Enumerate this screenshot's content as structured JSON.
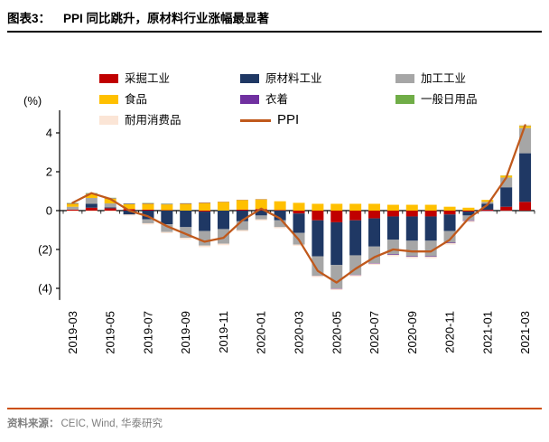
{
  "header": {
    "label": "图表3：",
    "title": "PPI 同比跳升，原材料行业涨幅最显著"
  },
  "footer": {
    "source_label": "资料来源：",
    "source_text": "CEIC, Wind, 华泰研究"
  },
  "colors": {
    "header_rule": "#000000",
    "footer_rule": "#cc4f06"
  },
  "chart_data": {
    "type": "bar",
    "subtype": "stacked-bar-with-line",
    "title": "PPI 同比跳升，原材料行业涨幅最显著",
    "ylabel": "(%)",
    "ylim": [
      -4.6,
      5
    ],
    "yticks": [
      4,
      2,
      0,
      -2,
      -4
    ],
    "ytick_labels": [
      "4",
      "2",
      "0",
      "(2)",
      "(4)"
    ],
    "grid": false,
    "legend_position": "top",
    "x": [
      "2019-03",
      "2019-04",
      "2019-05",
      "2019-06",
      "2019-07",
      "2019-08",
      "2019-09",
      "2019-10",
      "2019-11",
      "2019-12",
      "2020-01",
      "2020-02",
      "2020-03",
      "2020-04",
      "2020-05",
      "2020-06",
      "2020-07",
      "2020-08",
      "2020-09",
      "2020-10",
      "2020-11",
      "2020-12",
      "2021-01",
      "2021-02",
      "2021-03"
    ],
    "xtick_every": 2,
    "series": [
      {
        "name": "采掘工业",
        "color": "#c00000",
        "values": [
          0.05,
          0.15,
          0.12,
          0.08,
          0.05,
          0.02,
          0.0,
          -0.05,
          0.0,
          0.05,
          0.08,
          0.03,
          -0.15,
          -0.5,
          -0.6,
          -0.5,
          -0.4,
          -0.3,
          -0.3,
          -0.3,
          -0.2,
          -0.05,
          0.05,
          0.2,
          0.45
        ]
      },
      {
        "name": "原材料工业",
        "color": "#1f3864",
        "values": [
          0.0,
          0.2,
          0.05,
          -0.2,
          -0.45,
          -0.7,
          -0.85,
          -1.0,
          -0.95,
          -0.55,
          -0.25,
          -0.5,
          -1.0,
          -1.85,
          -2.2,
          -1.8,
          -1.45,
          -1.2,
          -1.25,
          -1.25,
          -0.85,
          -0.2,
          0.3,
          1.0,
          2.5
        ]
      },
      {
        "name": "加工工业",
        "color": "#a6a6a6",
        "values": [
          0.15,
          0.3,
          0.2,
          0.0,
          -0.2,
          -0.4,
          -0.55,
          -0.75,
          -0.75,
          -0.45,
          -0.2,
          -0.35,
          -0.6,
          -1.0,
          -1.2,
          -1.0,
          -0.85,
          -0.75,
          -0.8,
          -0.8,
          -0.6,
          -0.25,
          0.1,
          0.5,
          1.3
        ]
      },
      {
        "name": "食品",
        "color": "#ffc000",
        "values": [
          0.15,
          0.2,
          0.25,
          0.25,
          0.3,
          0.3,
          0.35,
          0.4,
          0.45,
          0.5,
          0.5,
          0.45,
          0.4,
          0.35,
          0.35,
          0.35,
          0.35,
          0.3,
          0.3,
          0.3,
          0.2,
          0.15,
          0.1,
          0.1,
          0.1
        ]
      },
      {
        "name": "衣着",
        "color": "#7030a0",
        "values": [
          0.02,
          0.02,
          0.02,
          0.02,
          0.02,
          0.02,
          0.02,
          0.02,
          0.01,
          0.01,
          0.01,
          0.0,
          0.0,
          -0.01,
          -0.02,
          -0.02,
          -0.02,
          -0.03,
          -0.03,
          -0.03,
          -0.03,
          -0.03,
          -0.02,
          -0.01,
          0.01
        ]
      },
      {
        "name": "一般日用品",
        "color": "#70ad47",
        "values": [
          0.02,
          0.03,
          0.02,
          0.02,
          0.02,
          0.02,
          0.01,
          0.0,
          0.0,
          0.0,
          0.0,
          0.0,
          0.0,
          0.0,
          0.0,
          0.0,
          0.0,
          0.0,
          0.0,
          0.0,
          0.0,
          0.0,
          0.0,
          0.01,
          0.02
        ]
      },
      {
        "name": "耐用消费品",
        "color": "#fbe5d6",
        "values": [
          -0.05,
          -0.05,
          -0.05,
          -0.05,
          -0.06,
          -0.06,
          -0.08,
          -0.08,
          -0.08,
          -0.07,
          -0.06,
          -0.06,
          -0.06,
          -0.06,
          -0.07,
          -0.07,
          -0.07,
          -0.07,
          -0.07,
          -0.07,
          -0.07,
          -0.07,
          -0.05,
          -0.03,
          0.05
        ]
      }
    ],
    "line": {
      "name": "PPI",
      "color": "#c0591c",
      "values": [
        0.4,
        0.9,
        0.6,
        0.0,
        -0.3,
        -0.8,
        -1.2,
        -1.6,
        -1.4,
        -0.5,
        0.1,
        -0.4,
        -1.5,
        -3.1,
        -3.7,
        -3.0,
        -2.4,
        -2.0,
        -2.1,
        -2.1,
        -1.5,
        -0.4,
        0.3,
        1.7,
        4.4
      ]
    }
  }
}
